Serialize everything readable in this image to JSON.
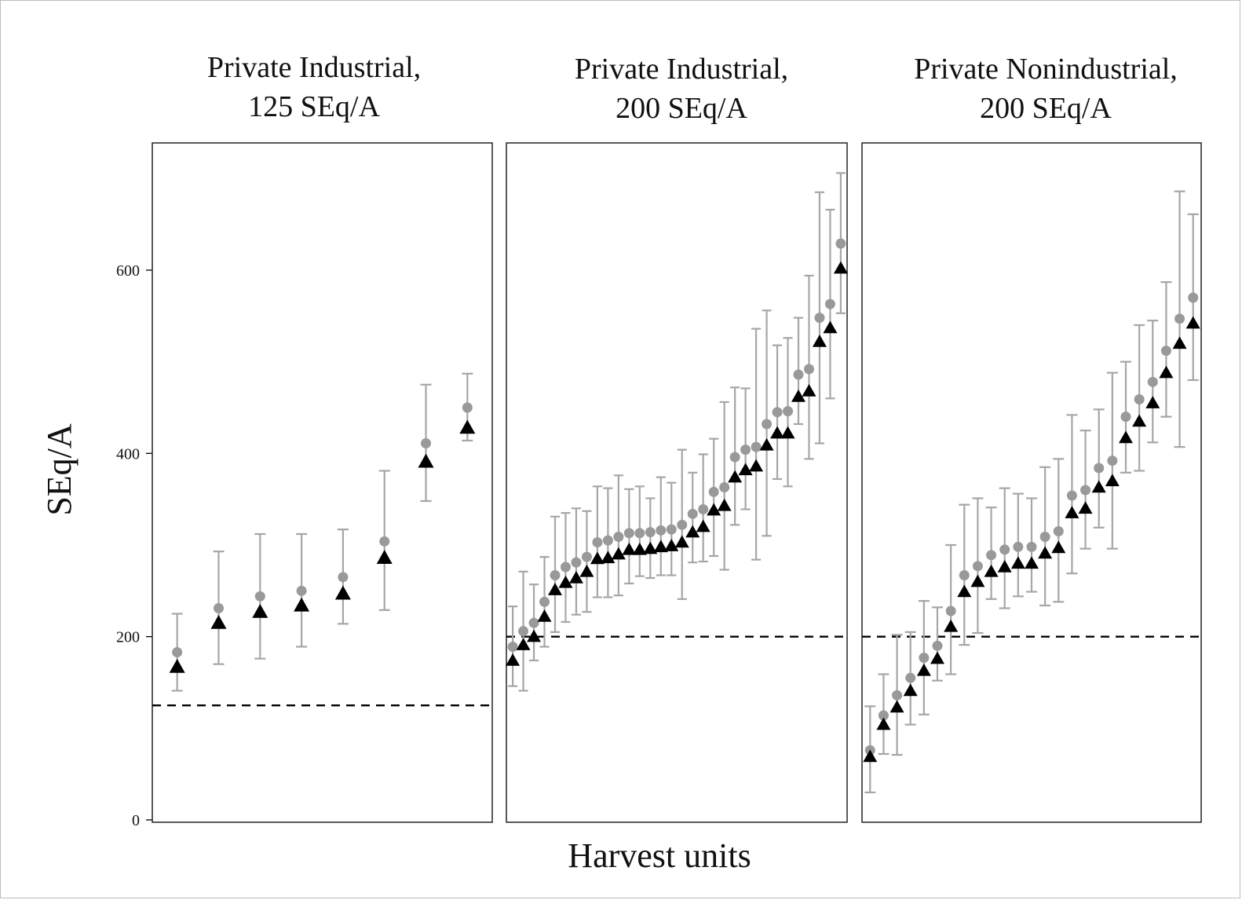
{
  "chart_data": {
    "type": "scatter",
    "ylabel": "SEq/A",
    "xlabel": "Harvest units",
    "ylim": [
      0,
      740
    ],
    "yticks": [
      0,
      200,
      400,
      600
    ],
    "grid": false,
    "colors": {
      "circle": "#999999",
      "triangle": "#000000",
      "errorbar": "#a6a6a6",
      "reference_line": "#000000"
    },
    "panels": [
      {
        "title_line1": "Private Industrial,",
        "title_line2": "125 SEq/A",
        "reference": 125,
        "circle": [
          183,
          231,
          244,
          250,
          265,
          304,
          411,
          450
        ],
        "triangle": [
          167,
          215,
          227,
          234,
          247,
          286,
          391,
          428
        ],
        "lower": [
          141,
          170,
          176,
          189,
          214,
          229,
          348,
          414
        ],
        "upper": [
          225,
          293,
          312,
          312,
          317,
          381,
          475,
          487
        ]
      },
      {
        "title_line1": "Private Industrial,",
        "title_line2": "200 SEq/A",
        "reference": 200,
        "circle": [
          189,
          206,
          215,
          238,
          267,
          276,
          281,
          287,
          303,
          305,
          309,
          313,
          313,
          314,
          316,
          317,
          322,
          334,
          339,
          358,
          363,
          396,
          404,
          407,
          432,
          445,
          446,
          486,
          492,
          548,
          563,
          629
        ],
        "triangle": [
          174,
          191,
          200,
          222,
          251,
          259,
          264,
          271,
          285,
          286,
          290,
          295,
          295,
          296,
          298,
          299,
          303,
          314,
          320,
          338,
          343,
          374,
          382,
          386,
          409,
          422,
          422,
          462,
          468,
          522,
          537,
          602
        ],
        "lower": [
          146,
          141,
          174,
          189,
          205,
          216,
          224,
          227,
          243,
          243,
          245,
          258,
          266,
          264,
          267,
          267,
          241,
          281,
          282,
          288,
          273,
          322,
          339,
          284,
          310,
          372,
          364,
          432,
          394,
          411,
          460,
          553
        ],
        "upper": [
          233,
          271,
          257,
          287,
          331,
          335,
          340,
          337,
          364,
          362,
          376,
          361,
          364,
          351,
          374,
          368,
          404,
          379,
          399,
          416,
          456,
          472,
          471,
          536,
          556,
          518,
          526,
          548,
          594,
          685,
          666,
          706
        ]
      },
      {
        "title_line1": "Private Nonindustrial,",
        "title_line2": "200 SEq/A",
        "reference": 200,
        "circle": [
          76,
          114,
          136,
          155,
          177,
          190,
          228,
          267,
          277,
          289,
          295,
          298,
          298,
          309,
          315,
          354,
          360,
          384,
          392,
          440,
          459,
          478,
          512,
          547,
          570
        ],
        "triangle": [
          69,
          104,
          123,
          141,
          163,
          176,
          211,
          249,
          260,
          271,
          276,
          280,
          280,
          291,
          297,
          335,
          340,
          363,
          370,
          417,
          435,
          455,
          488,
          520,
          542
        ],
        "lower": [
          30,
          72,
          71,
          104,
          115,
          152,
          159,
          191,
          204,
          241,
          231,
          244,
          249,
          234,
          238,
          269,
          296,
          319,
          296,
          379,
          381,
          412,
          440,
          407,
          480
        ],
        "upper": [
          124,
          159,
          202,
          205,
          239,
          232,
          300,
          344,
          351,
          341,
          362,
          356,
          351,
          385,
          394,
          442,
          425,
          448,
          488,
          500,
          540,
          545,
          587,
          686,
          661
        ]
      }
    ]
  }
}
